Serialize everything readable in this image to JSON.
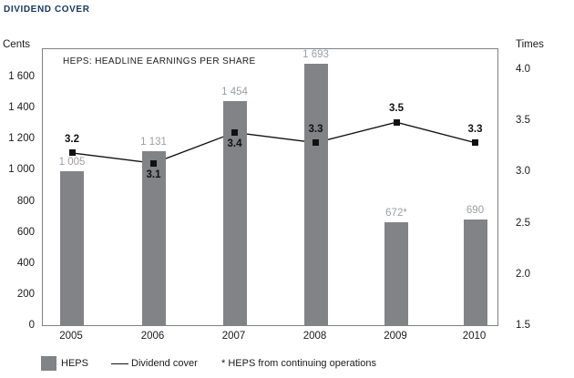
{
  "title": "DIVIDEND COVER",
  "chart_data": {
    "type": "bar",
    "title": "DIVIDEND COVER",
    "annotation": "HEPS: HEADLINE EARNINGS PER SHARE",
    "footnote": "* HEPS from continuing operations",
    "categories": [
      "2005",
      "2006",
      "2007",
      "2008",
      "2009",
      "2010"
    ],
    "series": [
      {
        "name": "HEPS",
        "type": "bar",
        "axis": "left",
        "values": [
          1005,
          1131,
          1454,
          1693,
          672,
          690
        ],
        "labels": [
          "1 005",
          "1 131",
          "1 454",
          "1 693",
          "672*",
          "690"
        ],
        "color": "#818386",
        "label_color": "#9c9ea1"
      },
      {
        "name": "Dividend cover",
        "type": "line",
        "axis": "right",
        "values": [
          3.2,
          3.1,
          3.4,
          3.3,
          3.5,
          3.3
        ],
        "labels": [
          "3.2",
          "3.1",
          "3.4",
          "3.3",
          "3.5",
          "3.3"
        ],
        "label_positions": [
          "above",
          "below",
          "below",
          "above",
          "above",
          "above"
        ],
        "color": "#111111"
      }
    ],
    "left_axis": {
      "label": "Cents",
      "ticks": [
        0,
        200,
        400,
        600,
        800,
        1000,
        1200,
        1400,
        1600
      ],
      "tick_labels": [
        "0",
        "200",
        "400",
        "600",
        "800",
        "1 000",
        "1 200",
        "1 400",
        "1 600"
      ],
      "range_shown": [
        0,
        1788
      ]
    },
    "right_axis": {
      "label": "Times",
      "ticks": [
        1.5,
        2.0,
        2.5,
        3.0,
        3.5,
        4.0
      ],
      "tick_labels": [
        "1.5",
        "2.0",
        "2.5",
        "3.0",
        "3.5",
        "4.0"
      ],
      "range_shown": [
        1.5,
        4.0
      ]
    },
    "grid": false,
    "legend_position": "bottom"
  },
  "colors": {
    "title": "#17375D",
    "bar": "#818386",
    "bar_label": "#9c9ea1",
    "line": "#111111",
    "plot_border": "#7e8084"
  }
}
